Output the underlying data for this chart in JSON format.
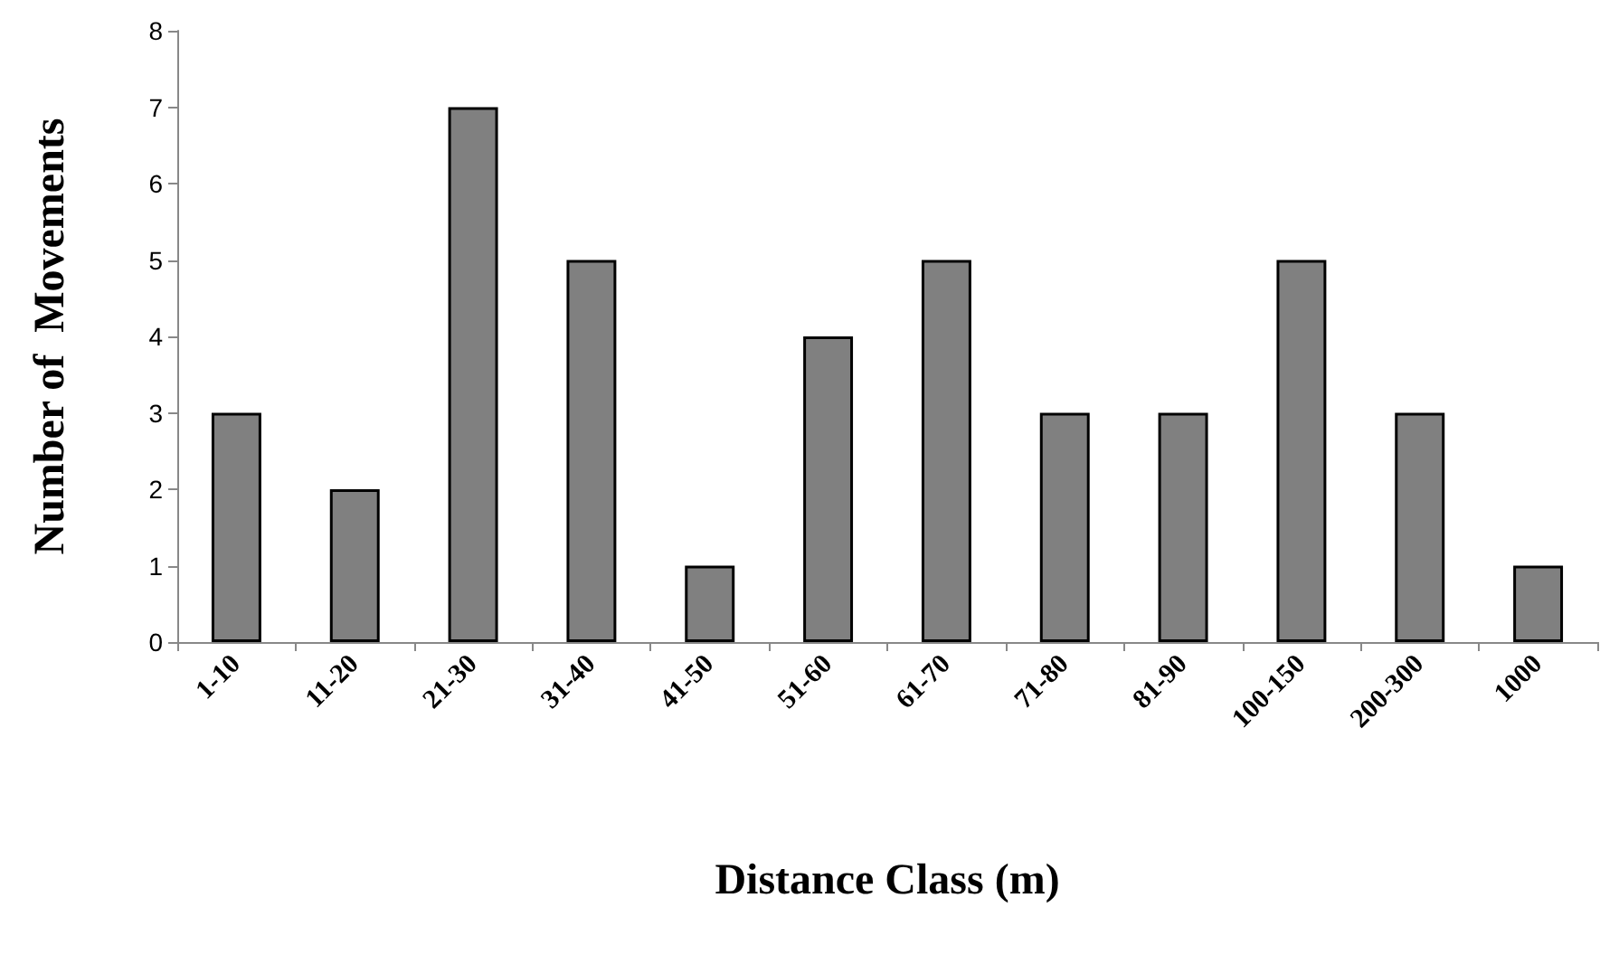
{
  "chart_data": {
    "type": "bar",
    "xlabel": "Distance Class (m)",
    "ylabel": "Number of  Movements",
    "categories": [
      "1-10",
      "11-20",
      "21-30",
      "31-40",
      "41-50",
      "51-60",
      "61-70",
      "71-80",
      "81-90",
      "100-150",
      "200-300",
      "1000"
    ],
    "values": [
      3,
      2,
      7,
      5,
      1,
      4,
      5,
      3,
      3,
      5,
      3,
      1
    ],
    "color": "#808080",
    "ylim": [
      0,
      8
    ],
    "yticks": [
      0,
      1,
      2,
      3,
      4,
      5,
      6,
      7,
      8
    ],
    "grid": false
  }
}
